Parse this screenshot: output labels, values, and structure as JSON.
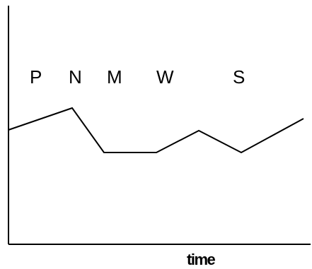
{
  "phase_labels": [
    "P",
    "N",
    "M",
    "W",
    "S"
  ],
  "x_axis_label": "time",
  "line_color": "#000000"
}
